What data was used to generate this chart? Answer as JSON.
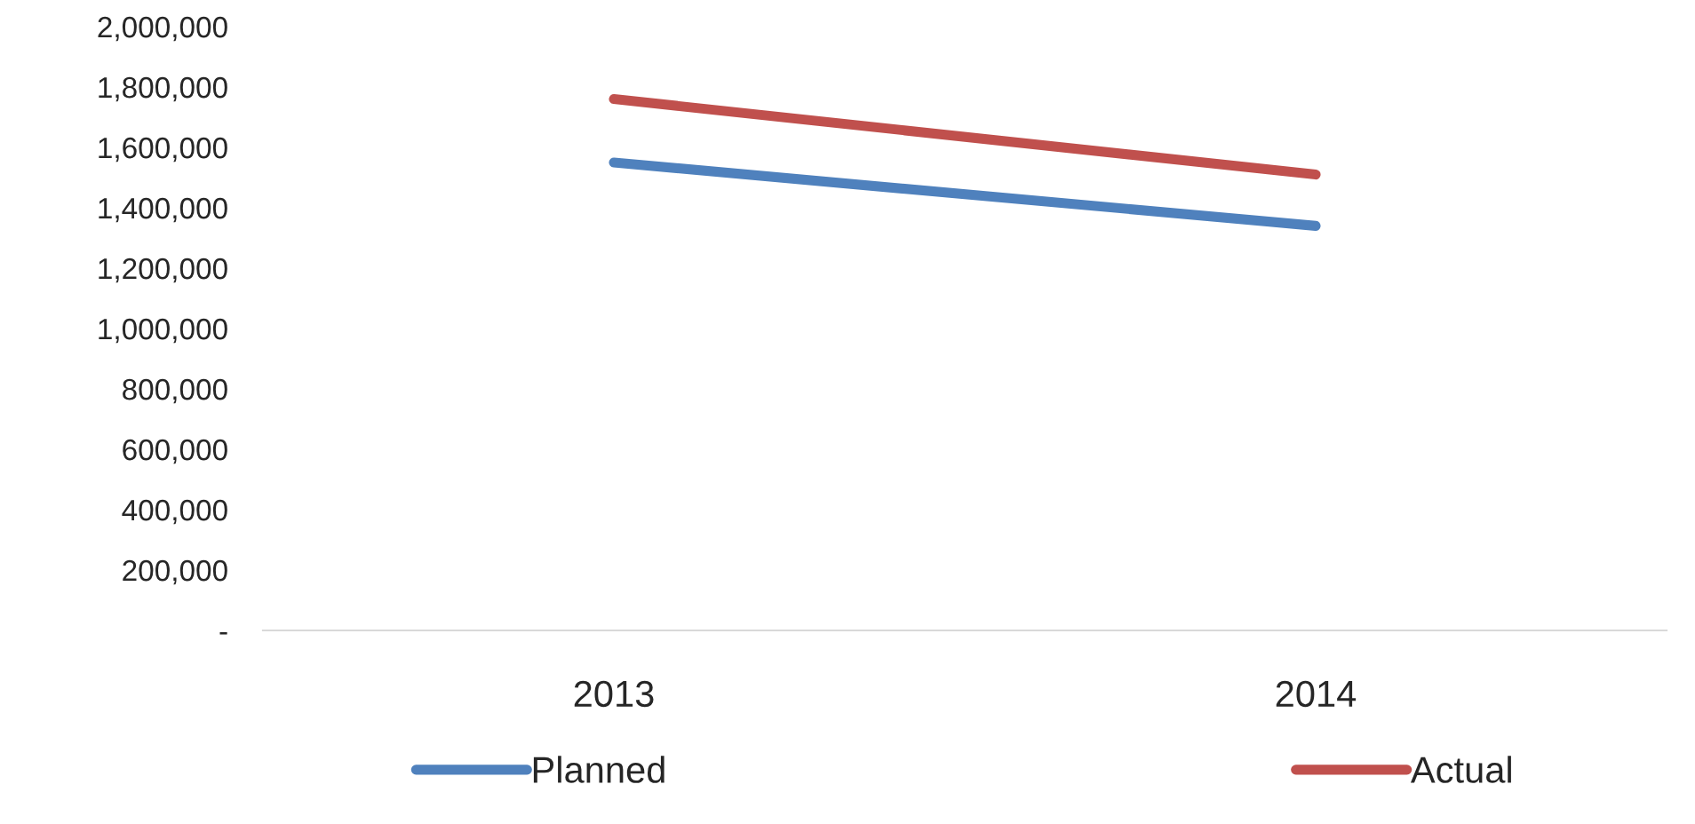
{
  "chart_data": {
    "type": "line",
    "categories": [
      "2013",
      "2014"
    ],
    "series": [
      {
        "name": "Planned",
        "color": "#4f81bd",
        "values": [
          1550000,
          1340000
        ]
      },
      {
        "name": "Actual",
        "color": "#c0504d",
        "values": [
          1760000,
          1510000
        ]
      }
    ],
    "ylim": [
      0,
      2000000
    ],
    "yticks": [
      {
        "value": 0,
        "label": "-"
      },
      {
        "value": 200000,
        "label": "200,000"
      },
      {
        "value": 400000,
        "label": "400,000"
      },
      {
        "value": 600000,
        "label": "600,000"
      },
      {
        "value": 800000,
        "label": "800,000"
      },
      {
        "value": 1000000,
        "label": "1,000,000"
      },
      {
        "value": 1200000,
        "label": "1,200,000"
      },
      {
        "value": 1400000,
        "label": "1,400,000"
      },
      {
        "value": 1600000,
        "label": "1,600,000"
      },
      {
        "value": 1800000,
        "label": "1,800,000"
      },
      {
        "value": 2000000,
        "label": "2,000,000"
      }
    ],
    "grid": false,
    "legend": "bottom",
    "marker": "none",
    "line_style": "solid"
  }
}
